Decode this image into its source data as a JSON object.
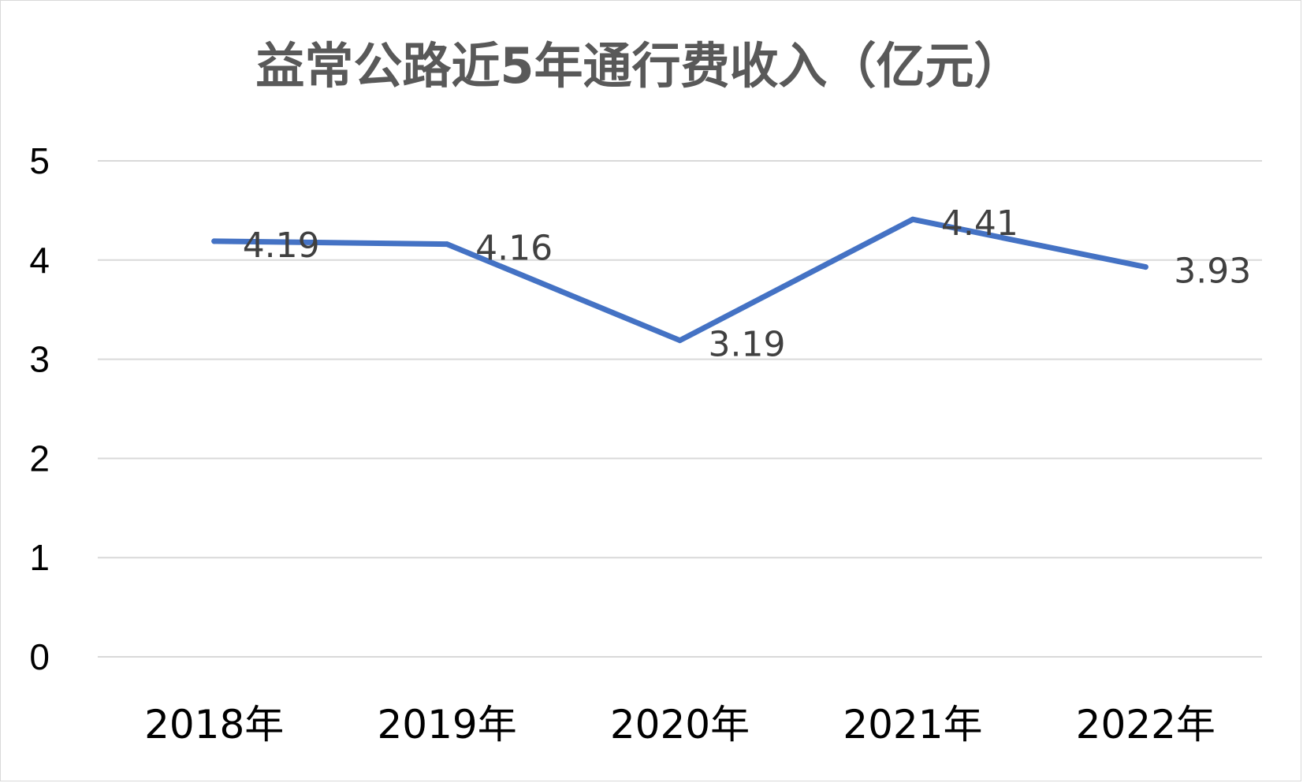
{
  "chart_data": {
    "type": "line",
    "title": "益常公路近5年通行费收入（亿元）",
    "categories": [
      "2018年",
      "2019年",
      "2020年",
      "2021年",
      "2022年"
    ],
    "series": [
      {
        "values": [
          4.19,
          4.16,
          3.19,
          4.41,
          3.93
        ],
        "labels": [
          "4.19",
          "4.16",
          "3.19",
          "4.41",
          "3.93"
        ],
        "color": "#4472c4"
      }
    ],
    "yticks": [
      "0",
      "1",
      "2",
      "3",
      "4",
      "5"
    ],
    "ylim": [
      0,
      5
    ],
    "grid": true,
    "legend": "none"
  }
}
